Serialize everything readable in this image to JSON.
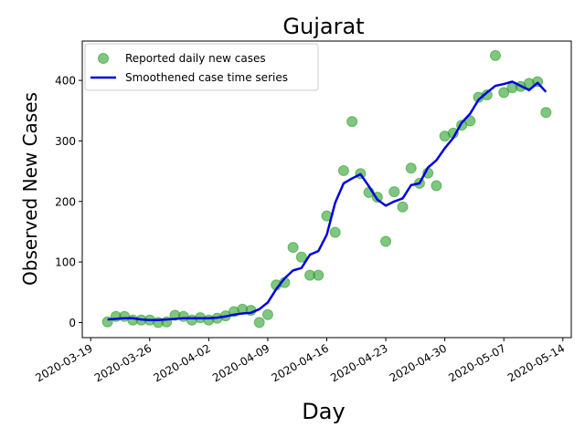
{
  "chart_data": {
    "type": "scatter",
    "title": "Gujarat",
    "xlabel": "Day",
    "ylabel": "Observed New Cases",
    "xlim": [
      "2020-03-18",
      "2020-05-15"
    ],
    "ylim": [
      -25,
      465
    ],
    "x_ticks": [
      "2020-03-19",
      "2020-03-26",
      "2020-04-02",
      "2020-04-09",
      "2020-04-16",
      "2020-04-23",
      "2020-04-30",
      "2020-05-07",
      "2020-05-14"
    ],
    "y_ticks": [
      0,
      100,
      200,
      300,
      400
    ],
    "grid": false,
    "legend_position": "top-left",
    "series": [
      {
        "name": "Reported daily new cases",
        "kind": "scatter",
        "color": "#2ca02c",
        "points": [
          [
            "2020-03-21",
            1
          ],
          [
            "2020-03-22",
            10
          ],
          [
            "2020-03-23",
            10
          ],
          [
            "2020-03-24",
            4
          ],
          [
            "2020-03-25",
            4
          ],
          [
            "2020-03-26",
            4
          ],
          [
            "2020-03-27",
            0
          ],
          [
            "2020-03-28",
            1
          ],
          [
            "2020-03-29",
            12
          ],
          [
            "2020-03-30",
            10
          ],
          [
            "2020-03-31",
            4
          ],
          [
            "2020-04-01",
            8
          ],
          [
            "2020-04-02",
            4
          ],
          [
            "2020-04-03",
            7
          ],
          [
            "2020-04-04",
            11
          ],
          [
            "2020-04-05",
            18
          ],
          [
            "2020-04-06",
            22
          ],
          [
            "2020-04-07",
            20
          ],
          [
            "2020-04-08",
            0
          ],
          [
            "2020-04-09",
            13
          ],
          [
            "2020-04-10",
            62
          ],
          [
            "2020-04-11",
            66
          ],
          [
            "2020-04-12",
            124
          ],
          [
            "2020-04-13",
            108
          ],
          [
            "2020-04-14",
            78
          ],
          [
            "2020-04-15",
            78
          ],
          [
            "2020-04-16",
            176
          ],
          [
            "2020-04-17",
            149
          ],
          [
            "2020-04-18",
            251
          ],
          [
            "2020-04-19",
            332
          ],
          [
            "2020-04-20",
            246
          ],
          [
            "2020-04-21",
            215
          ],
          [
            "2020-04-22",
            207
          ],
          [
            "2020-04-23",
            134
          ],
          [
            "2020-04-24",
            216
          ],
          [
            "2020-04-25",
            191
          ],
          [
            "2020-04-26",
            255
          ],
          [
            "2020-04-27",
            230
          ],
          [
            "2020-04-28",
            247
          ],
          [
            "2020-04-29",
            226
          ],
          [
            "2020-04-30",
            308
          ],
          [
            "2020-05-01",
            313
          ],
          [
            "2020-05-02",
            326
          ],
          [
            "2020-05-03",
            333
          ],
          [
            "2020-05-04",
            372
          ],
          [
            "2020-05-05",
            376
          ],
          [
            "2020-05-06",
            441
          ],
          [
            "2020-05-07",
            380
          ],
          [
            "2020-05-08",
            388
          ],
          [
            "2020-05-09",
            390
          ],
          [
            "2020-05-10",
            395
          ],
          [
            "2020-05-11",
            398
          ],
          [
            "2020-05-12",
            347
          ]
        ]
      },
      {
        "name": "Smoothened case time series",
        "kind": "line",
        "color": "#0000dd",
        "points": [
          [
            "2020-03-21",
            5
          ],
          [
            "2020-03-22",
            6
          ],
          [
            "2020-03-23",
            7
          ],
          [
            "2020-03-24",
            7
          ],
          [
            "2020-03-25",
            5
          ],
          [
            "2020-03-26",
            4
          ],
          [
            "2020-03-27",
            4
          ],
          [
            "2020-03-28",
            5
          ],
          [
            "2020-03-29",
            6
          ],
          [
            "2020-03-30",
            7
          ],
          [
            "2020-03-31",
            7
          ],
          [
            "2020-04-01",
            7
          ],
          [
            "2020-04-02",
            7
          ],
          [
            "2020-04-03",
            8
          ],
          [
            "2020-04-04",
            10
          ],
          [
            "2020-04-05",
            13
          ],
          [
            "2020-04-06",
            15
          ],
          [
            "2020-04-07",
            16
          ],
          [
            "2020-04-08",
            22
          ],
          [
            "2020-04-09",
            33
          ],
          [
            "2020-04-10",
            55
          ],
          [
            "2020-04-11",
            73
          ],
          [
            "2020-04-12",
            86
          ],
          [
            "2020-04-13",
            90
          ],
          [
            "2020-04-14",
            112
          ],
          [
            "2020-04-15",
            118
          ],
          [
            "2020-04-16",
            145
          ],
          [
            "2020-04-17",
            198
          ],
          [
            "2020-04-18",
            230
          ],
          [
            "2020-04-19",
            238
          ],
          [
            "2020-04-20",
            245
          ],
          [
            "2020-04-21",
            225
          ],
          [
            "2020-04-22",
            203
          ],
          [
            "2020-04-23",
            193
          ],
          [
            "2020-04-24",
            200
          ],
          [
            "2020-04-25",
            205
          ],
          [
            "2020-04-26",
            227
          ],
          [
            "2020-04-27",
            230
          ],
          [
            "2020-04-28",
            256
          ],
          [
            "2020-04-29",
            268
          ],
          [
            "2020-04-30",
            288
          ],
          [
            "2020-05-01",
            305
          ],
          [
            "2020-05-02",
            330
          ],
          [
            "2020-05-03",
            345
          ],
          [
            "2020-05-04",
            368
          ],
          [
            "2020-05-05",
            380
          ],
          [
            "2020-05-06",
            391
          ],
          [
            "2020-05-07",
            394
          ],
          [
            "2020-05-08",
            398
          ],
          [
            "2020-05-09",
            391
          ],
          [
            "2020-05-10",
            384
          ],
          [
            "2020-05-11",
            396
          ],
          [
            "2020-05-12",
            381
          ]
        ]
      }
    ]
  }
}
